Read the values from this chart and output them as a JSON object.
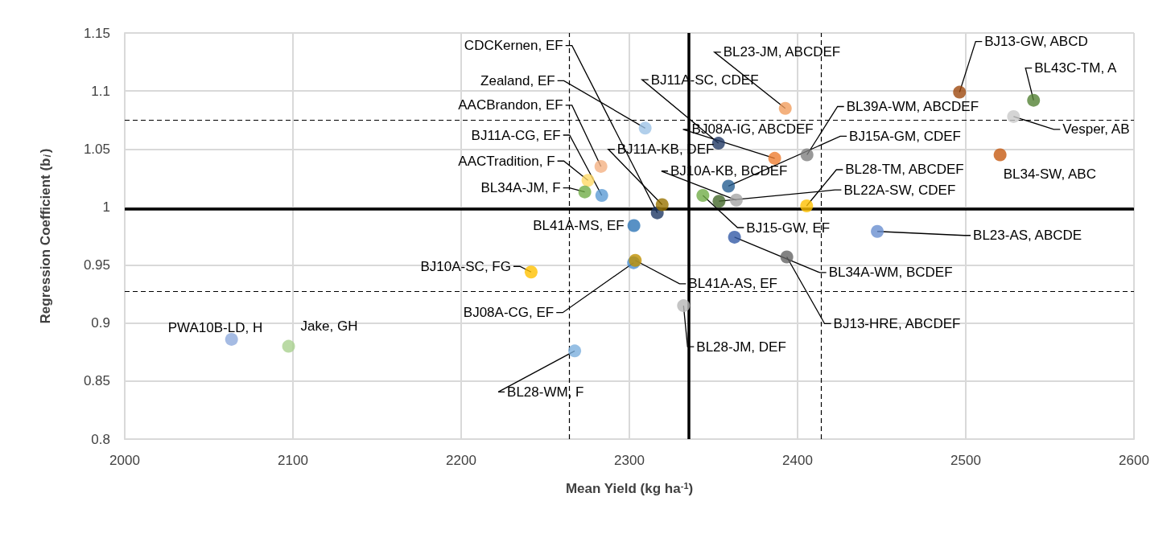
{
  "chart_data": {
    "type": "scatter",
    "xlabel": "Mean Yield (kg ha$^{-1}$)",
    "ylabel": "Regression Coefficient (b$_{i}$)",
    "xlim": [
      2000,
      2600
    ],
    "xticks": [
      2000,
      2100,
      2200,
      2300,
      2400,
      2500,
      2600
    ],
    "ylim": [
      0.8,
      1.15
    ],
    "yticks": [
      0.8,
      0.85,
      0.9,
      0.95,
      1,
      1.05,
      1.1,
      1.15
    ],
    "grid": true,
    "marker": "circle",
    "series": [
      {
        "x": [
          2316.6,
          2309.4,
          2283.1,
          2283.6,
          2275.4,
          2273.5,
          2302.7,
          2319.5,
          2343.7,
          2353.0,
          2392.7,
          2386.4,
          2405.6,
          2358.9,
          2363.6,
          2353.3,
          2405.4,
          2496.3,
          2540.3,
          2528.4,
          2520.4,
          2447.4,
          2362.5,
          2393.6,
          2302.5,
          2303.5,
          2332.2,
          2267.5,
          2241.6,
          2063.5,
          2097.4
        ],
        "values": [
          0.995,
          1.068,
          1.035,
          1.01,
          1.023,
          1.013,
          0.984,
          1.002,
          1.01,
          1.055,
          1.085,
          1.042,
          1.045,
          1.018,
          1.006,
          1.005,
          1.001,
          1.099,
          1.092,
          1.078,
          1.045,
          0.979,
          0.974,
          0.957,
          0.952,
          0.954,
          0.915,
          0.876,
          0.944,
          0.886,
          0.88
        ],
        "colors": [
          "#1f3864",
          "#9dc3e6",
          "#f4b183",
          "#5b9bd5",
          "#ffd966",
          "#70ad47",
          "#2e75b6",
          "#997300",
          "#70ad47",
          "#203864",
          "#f19e5e",
          "#ed7d31",
          "#7f7f7f",
          "#255e91",
          "#a5a5a5",
          "#43682b",
          "#ffc000",
          "#9e480e",
          "#548235",
          "#c9c9c9",
          "#c55a11",
          "#698ed0",
          "#335aa6",
          "#636363",
          "#4a8fd4",
          "#bf9000",
          "#b7b7b7",
          "#7cafdd",
          "#ffc000",
          "#8faadc",
          "#a9d18e"
        ]
      }
    ],
    "ref_lines": [
      {
        "axis": "x",
        "value": 2335.4,
        "line_style": "solid",
        "color": "#000000"
      },
      {
        "axis": "y",
        "value": 0.9986,
        "line_style": "solid",
        "color": "#000000"
      },
      {
        "axis": "x",
        "value": 2264.3,
        "line_style": "dashed",
        "color": "#000000"
      },
      {
        "axis": "x",
        "value": 2413.9,
        "line_style": "dashed",
        "color": "#000000"
      },
      {
        "axis": "y",
        "value": 0.9276,
        "line_style": "dashed",
        "color": "#000000"
      },
      {
        "axis": "y",
        "value": 1.075,
        "line_style": "dashed",
        "color": "#000000"
      }
    ],
    "annotations": [
      {
        "text": "CDCKernen, EF",
        "x": 2316.6,
        "y": 0.995
      },
      {
        "text": "Zealand, EF",
        "x": 2309.4,
        "y": 1.068
      },
      {
        "text": "AACBrandon, EF",
        "x": 2283.1,
        "y": 1.035
      },
      {
        "text": "BJ11A-CG, EF",
        "x": 2283.6,
        "y": 1.01
      },
      {
        "text": "AACTradition, F",
        "x": 2275.4,
        "y": 1.023
      },
      {
        "text": "BL34A-JM, F",
        "x": 2273.5,
        "y": 1.013
      },
      {
        "text": "BL41A-MS, EF",
        "x": 2302.7,
        "y": 0.984
      },
      {
        "text": "BJ11A-KB, DEF",
        "x": 2319.5,
        "y": 1.002
      },
      {
        "text": "BJ15-GW, EF",
        "x": 2343.7,
        "y": 1.01
      },
      {
        "text": "BJ11A-SC, CDEF",
        "x": 2353.0,
        "y": 1.055
      },
      {
        "text": "BL23-JM, ABCDEF",
        "x": 2392.7,
        "y": 1.085
      },
      {
        "text": "BJ08A-IG, ABCDEF",
        "x": 2386.4,
        "y": 1.042
      },
      {
        "text": "BL39A-WM, ABCDEF",
        "x": 2405.6,
        "y": 1.045
      },
      {
        "text": "BJ15A-GM, CDEF",
        "x": 2358.9,
        "y": 1.018
      },
      {
        "text": "BJ10A-KB, BCDEF",
        "x": 2363.6,
        "y": 1.006
      },
      {
        "text": "BL22A-SW, CDEF",
        "x": 2353.3,
        "y": 1.005
      },
      {
        "text": "BL28-TM, ABCDEF",
        "x": 2405.4,
        "y": 1.001
      },
      {
        "text": "BJ13-GW, ABCD",
        "x": 2496.3,
        "y": 1.099
      },
      {
        "text": "BL43C-TM, A",
        "x": 2540.3,
        "y": 1.092
      },
      {
        "text": "Vesper, AB",
        "x": 2528.4,
        "y": 1.078
      },
      {
        "text": "BL34-SW, ABC",
        "x": 2520.4,
        "y": 1.045
      },
      {
        "text": "BL23-AS, ABCDE",
        "x": 2447.4,
        "y": 0.979
      },
      {
        "text": "BL34A-WM, BCDEF",
        "x": 2362.5,
        "y": 0.974
      },
      {
        "text": "BJ13-HRE, ABCDEF",
        "x": 2393.6,
        "y": 0.957
      },
      {
        "text": "BL41A-AS, EF",
        "x": 2303.5,
        "y": 0.954
      },
      {
        "text": "BJ08A-CG, EF",
        "x": 2302.5,
        "y": 0.952
      },
      {
        "text": "BL28-JM, DEF",
        "x": 2332.2,
        "y": 0.915
      },
      {
        "text": "BL28-WM, F",
        "x": 2267.5,
        "y": 0.876
      },
      {
        "text": "BJ10A-SC, FG",
        "x": 2241.6,
        "y": 0.944
      },
      {
        "text": "PWA10B-LD, H",
        "x": 2063.5,
        "y": 0.886
      },
      {
        "text": "Jake, GH",
        "x": 2097.4,
        "y": 0.88
      }
    ]
  }
}
